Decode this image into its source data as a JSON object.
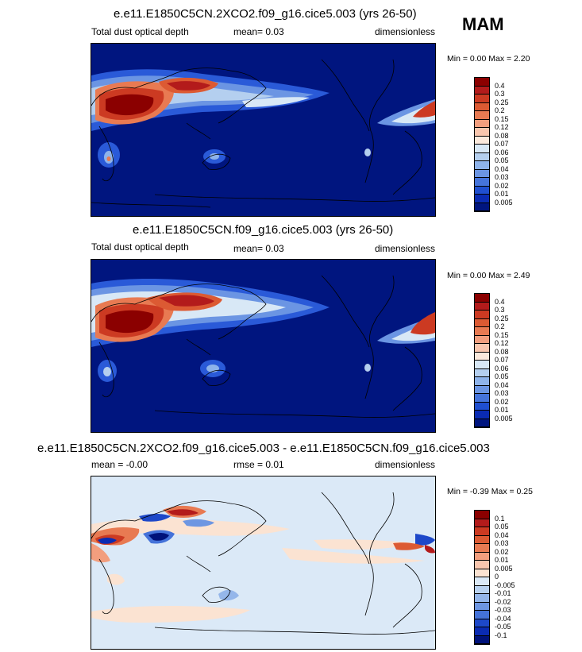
{
  "season": "MAM",
  "panels": [
    {
      "title": "e.e11.E1850C5CN.2XCO2.f09_g16.cice5.003 (yrs 26-50)",
      "left_label": "Total dust optical depth",
      "center_label": "mean=  0.03",
      "right_label": "dimensionless",
      "minmax": "Min =  0.00 Max =  2.20",
      "colorbar_labels": [
        "0.4",
        "0.3",
        "0.25",
        "0.2",
        "0.15",
        "0.12",
        "0.08",
        "0.07",
        "0.06",
        "0.05",
        "0.04",
        "0.03",
        "0.02",
        "0.01",
        "0.005"
      ],
      "colorbar_colors": [
        "#8b0000",
        "#b31b1b",
        "#cc3a22",
        "#dc5a33",
        "#e87a52",
        "#f29e7e",
        "#f9c6ae",
        "#fbe9dc",
        "#d8e8f6",
        "#b4cfef",
        "#8eb3ea",
        "#6b95e3",
        "#4574db",
        "#1f4fd0",
        "#0a2bb3",
        "#00157f"
      ]
    },
    {
      "title": "e.e11.E1850C5CN.f09_g16.cice5.003 (yrs 26-50)",
      "left_label": "Total dust optical depth",
      "center_label": "mean=  0.03",
      "right_label": "dimensionless",
      "minmax": "Min =  0.00 Max =  2.49",
      "colorbar_labels": [
        "0.4",
        "0.3",
        "0.25",
        "0.2",
        "0.15",
        "0.12",
        "0.08",
        "0.07",
        "0.06",
        "0.05",
        "0.04",
        "0.03",
        "0.02",
        "0.01",
        "0.005"
      ],
      "colorbar_colors": [
        "#8b0000",
        "#b31b1b",
        "#cc3a22",
        "#dc5a33",
        "#e87a52",
        "#f29e7e",
        "#f9c6ae",
        "#fbe9dc",
        "#d8e8f6",
        "#b4cfef",
        "#8eb3ea",
        "#6b95e3",
        "#4574db",
        "#1f4fd0",
        "#0a2bb3",
        "#00157f"
      ]
    },
    {
      "title": "e.e11.E1850C5CN.2XCO2.f09_g16.cice5.003 - e.e11.E1850C5CN.f09_g16.cice5.003",
      "left_label": "mean = -0.00",
      "center_label": "rmse =  0.01",
      "right_label": "dimensionless",
      "minmax": "Min = -0.39 Max =  0.25",
      "colorbar_labels": [
        "0.1",
        "0.05",
        "0.04",
        "0.03",
        "0.02",
        "0.01",
        "0.005",
        "0",
        "-0.005",
        "-0.01",
        "-0.02",
        "-0.03",
        "-0.04",
        "-0.05",
        "-0.1"
      ],
      "colorbar_colors": [
        "#8b0000",
        "#b31b1b",
        "#cc3a22",
        "#dc5a33",
        "#e87a52",
        "#f29e7e",
        "#f9c6ae",
        "#fbe3d2",
        "#dbe9f7",
        "#b9d2f0",
        "#94b6ea",
        "#6d96e2",
        "#4472d9",
        "#1d48c9",
        "#0a2bb3",
        "#00127a"
      ]
    }
  ]
}
